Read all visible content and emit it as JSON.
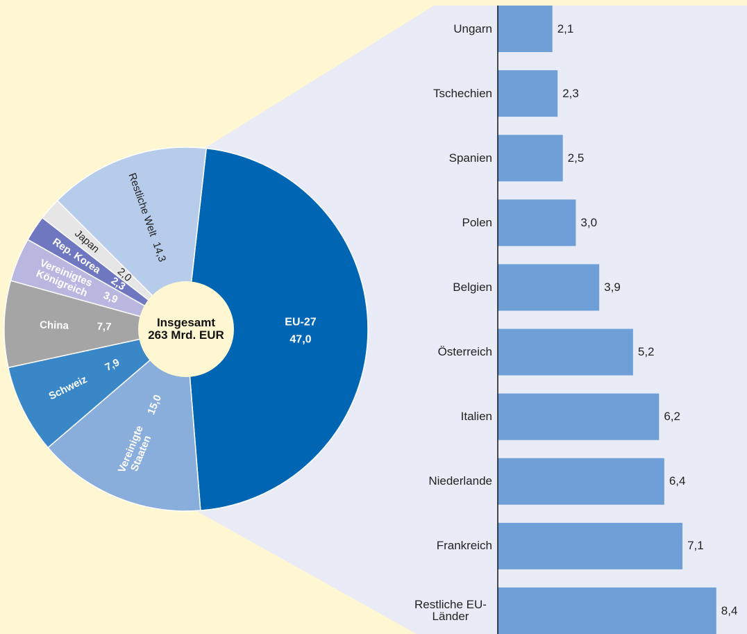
{
  "chart_data": [
    {
      "type": "pie",
      "center_label": "Insgesamt 263 Mrd. EUR",
      "categories": [
        "EU-27",
        "Vereinigte Staaten",
        "Schweiz",
        "China",
        "Vereinigtes Königreich",
        "Rep. Korea",
        "Japan",
        "Restliche Welt"
      ],
      "values": [
        47.0,
        15.0,
        7.9,
        7.7,
        3.9,
        2.3,
        2.0,
        14.3
      ],
      "value_labels": [
        "47,0",
        "15,0",
        "7,9",
        "7,7",
        "3,9",
        "2,3",
        "2,0",
        "14,3"
      ],
      "colors": [
        "#0066b3",
        "#8aaedc",
        "#3a87c8",
        "#a5a5a5",
        "#b9b7e0",
        "#6e77c0",
        "#e6e6e6",
        "#b7cbea"
      ]
    },
    {
      "type": "barh",
      "categories": [
        "Ungarn",
        "Tschechien",
        "Spanien",
        "Polen",
        "Belgien",
        "Österreich",
        "Italien",
        "Niederlande",
        "Frankreich",
        "Restliche EU-Länder"
      ],
      "values": [
        2.1,
        2.3,
        2.5,
        3.0,
        3.9,
        5.2,
        6.2,
        6.4,
        7.1,
        8.4
      ],
      "value_labels": [
        "2,1",
        "2,3",
        "2,5",
        "3,0",
        "3,9",
        "5,2",
        "6,2",
        "6,4",
        "7,1",
        "8,4"
      ],
      "color": "#6e9fd6",
      "xlim": [
        0,
        9.5
      ]
    }
  ]
}
